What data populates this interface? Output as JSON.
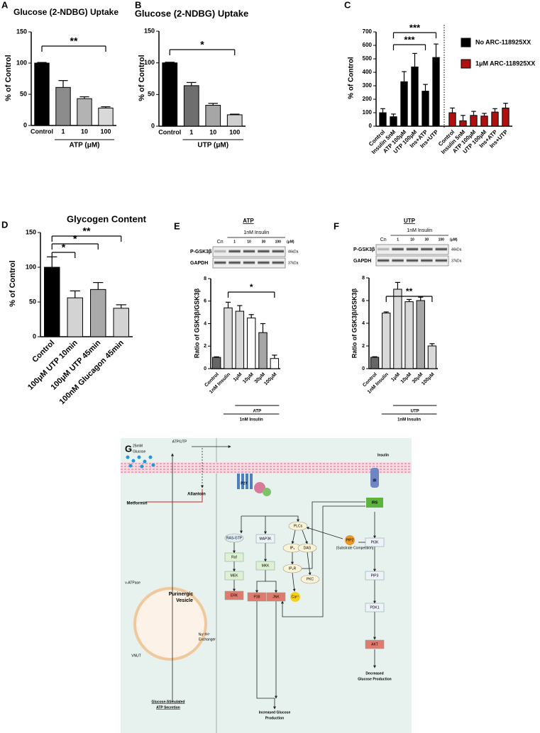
{
  "chart_data": [
    {
      "type": "bar",
      "panel": "A",
      "title": "Glucose (2-NDBG) Uptake",
      "ylabel": "% of Control",
      "categories": [
        "Control",
        "1",
        "10",
        "100"
      ],
      "values": [
        100,
        61,
        43,
        28
      ],
      "errors": [
        1,
        11,
        3,
        2
      ],
      "colors": [
        "#000000",
        "#8c8c8c",
        "#b3b3b3",
        "#d9d9d9"
      ],
      "ylim": [
        0,
        150
      ],
      "yticks": [
        0,
        50,
        100,
        150
      ],
      "significance": [
        "**"
      ],
      "x_groups": [
        "ATP (μM)"
      ]
    },
    {
      "type": "bar",
      "panel": "B",
      "title": "Glucose (2-NDBG) Uptake",
      "ylabel": "% of Control",
      "categories": [
        "Control",
        "1",
        "10",
        "100"
      ],
      "values": [
        100,
        64,
        33,
        18
      ],
      "errors": [
        1,
        5,
        3,
        1
      ],
      "colors": [
        "#000000",
        "#6e6e6e",
        "#a6a6a6",
        "#cfcfcf"
      ],
      "ylim": [
        0,
        150
      ],
      "yticks": [
        0,
        50,
        100,
        150
      ],
      "significance": [
        "*"
      ],
      "x_groups": [
        "UTP (μM)"
      ]
    },
    {
      "type": "bar",
      "panel": "C",
      "ylabel": "% of Control",
      "series": [
        {
          "name": "No ARC-118925XX",
          "color": "#000000",
          "categories": [
            "Control",
            "Insulin 5nM",
            "ATP 100μM",
            "UTP 100μM",
            "Ins+ATP",
            "Ins+UTP"
          ],
          "values": [
            100,
            70,
            330,
            440,
            260,
            510
          ],
          "errors": [
            30,
            20,
            75,
            100,
            50,
            100
          ]
        },
        {
          "name": "1μM ARC-118925XX",
          "color": "#b01010",
          "categories": [
            "Control",
            "Insulin 5nM",
            "ATP 100μM",
            "UTP 100μM",
            "Ins+ATP",
            "Ins+UTP"
          ],
          "values": [
            100,
            40,
            80,
            75,
            105,
            135
          ],
          "errors": [
            35,
            40,
            30,
            20,
            25,
            35
          ]
        }
      ],
      "ylim": [
        0,
        700
      ],
      "yticks": [
        0,
        100,
        200,
        300,
        400,
        500,
        600,
        700
      ],
      "significance": [
        "***",
        "***"
      ]
    },
    {
      "type": "bar",
      "panel": "D",
      "title": "Glycogen Content",
      "ylabel": "% of Control",
      "categories": [
        "Control",
        "100μM UTP 10min",
        "100μM UTP 45min",
        "100nM Glucagon 45min"
      ],
      "values": [
        100,
        56,
        68,
        41
      ],
      "errors": [
        15,
        10,
        10,
        5
      ],
      "colors": [
        "#000000",
        "#d3d3d3",
        "#a9a9a9",
        "#d3d3d3"
      ],
      "ylim": [
        0,
        150
      ],
      "yticks": [
        0,
        50,
        100,
        150
      ],
      "significance": [
        "*",
        "*",
        "**"
      ]
    },
    {
      "type": "bar",
      "panel": "E",
      "title": "ATP",
      "ylabel": "Ratio of GSK3β/GSK3β",
      "blot": {
        "header": "1nM Insulin",
        "lanes": [
          "Cn",
          "1",
          "10",
          "30",
          "100",
          "(μM)"
        ],
        "rows": [
          "P-GSK3β",
          "GAPDH"
        ],
        "sizes": [
          "46kDa",
          "37kDa"
        ]
      },
      "categories": [
        "Control",
        "1nM Insulin",
        "1μM",
        "10μM",
        "30μM",
        "100μM"
      ],
      "values": [
        1,
        5.4,
        5.1,
        4.5,
        3.2,
        0.9
      ],
      "errors": [
        0.05,
        0.5,
        0.5,
        0.3,
        0.8,
        0.3
      ],
      "colors": [
        "#666666",
        "#d9d9d9",
        "#d9d9d9",
        "#ffffff",
        "#a6a6a6",
        "#ffffff"
      ],
      "ylim": [
        0,
        8
      ],
      "yticks": [
        0,
        2,
        4,
        6,
        8
      ],
      "significance": [
        "*"
      ],
      "x_groups": [
        "ATP",
        "1nM Insulin"
      ]
    },
    {
      "type": "bar",
      "panel": "F",
      "title": "UTP",
      "ylabel": "Ratio of GSK3β/GSK3β",
      "blot": {
        "header": "1nM Insulin",
        "lanes": [
          "Cn",
          "1",
          "10",
          "30",
          "100",
          "(μM)"
        ],
        "rows": [
          "P-GSK3β",
          "GAPDH"
        ],
        "sizes": [
          "46kDa",
          "37kDa"
        ]
      },
      "categories": [
        "Control",
        "1nM Insulin",
        "1μM",
        "10μM",
        "30μM",
        "100μM"
      ],
      "values": [
        1,
        4.9,
        7.0,
        5.9,
        6.0,
        2.0
      ],
      "errors": [
        0.05,
        0.1,
        0.6,
        0.2,
        0.3,
        0.2
      ],
      "colors": [
        "#666666",
        "#d9d9d9",
        "#d9d9d9",
        "#d9d9d9",
        "#a6a6a6",
        "#d9d9d9"
      ],
      "ylim": [
        0,
        8
      ],
      "yticks": [
        0,
        2,
        4,
        6,
        8
      ],
      "significance": [
        "**"
      ],
      "x_groups": [
        "UTP",
        "1nM Insulin"
      ]
    }
  ],
  "diagram": {
    "panel": "G",
    "nodes": [
      "25mM",
      "Glucose",
      "ATP/UTP",
      "Allantoin",
      "Metformin",
      "Purinergic",
      "Vesicle",
      "v-ATPase",
      "VNUT",
      "Na⁺/H⁺",
      "Exchanger",
      "Glucose-Stimulated",
      "ATP Secretion",
      "P2Y",
      "RAS-GTP",
      "Raf",
      "MEK",
      "ERK",
      "MAP3K",
      "MKK",
      "P38",
      "JNK",
      "PLCs",
      "IP₃",
      "DAG",
      "IP₃R",
      "PKC",
      "Ca²⁺",
      "PIP2",
      "(Substrate Competition)",
      "Insulin",
      "IR",
      "IRS",
      "PI3K",
      "PIP3",
      "PDK1",
      "AKT",
      "Increased Glucose",
      "Production",
      "Decreased",
      "Glucose Production"
    ]
  }
}
